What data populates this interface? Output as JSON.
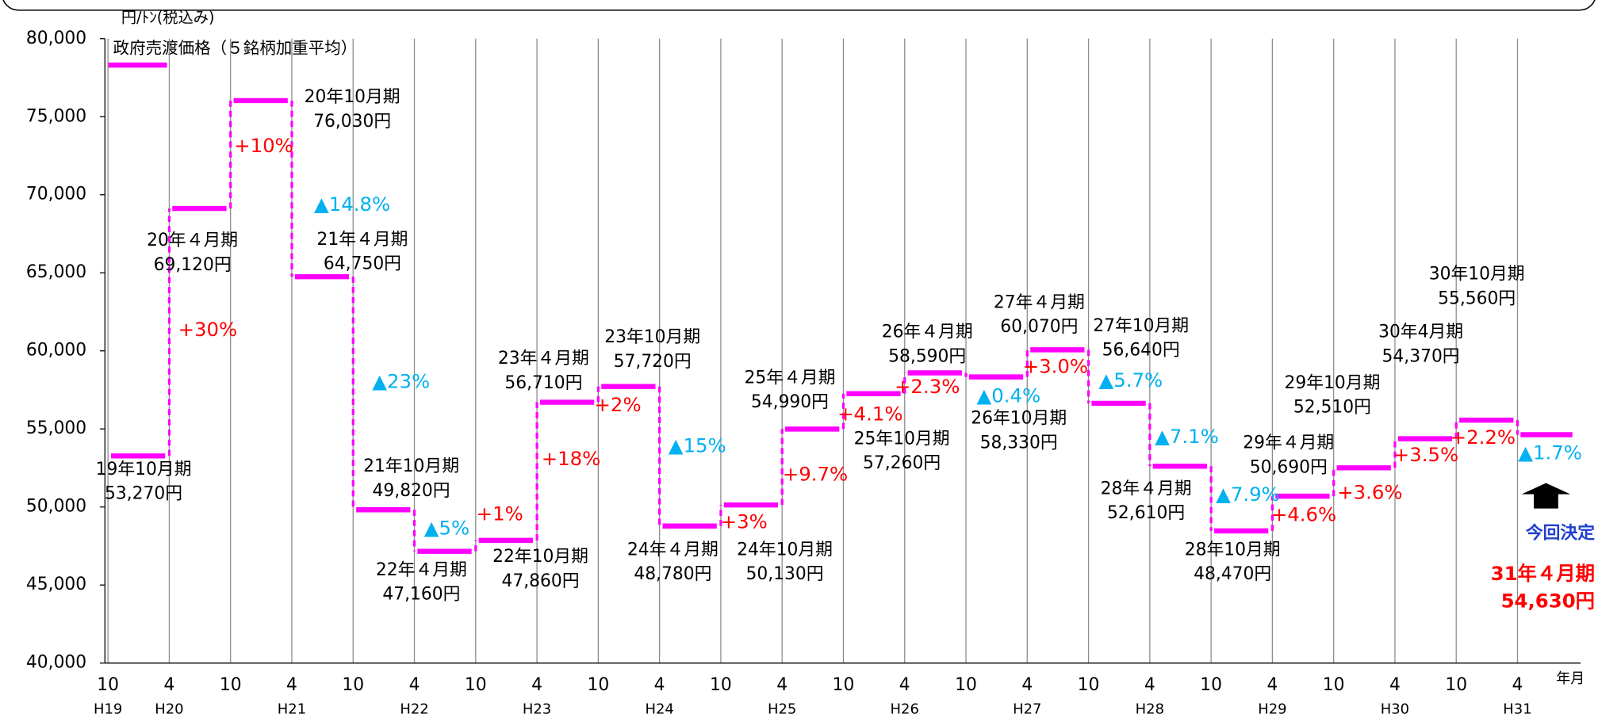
{
  "chart_data": {
    "type": "step",
    "unit_label": "円/ﾄﾝ(税込み)",
    "x_axis_label": "年月",
    "x_labels": [
      "10",
      "4",
      "10",
      "4",
      "10",
      "4",
      "10",
      "4",
      "10",
      "4",
      "10",
      "4",
      "10",
      "4",
      "10",
      "4",
      "10",
      "4",
      "10",
      "4",
      "10",
      "4",
      "10",
      "4"
    ],
    "era_labels": [
      "H19",
      "H20",
      null,
      "H21",
      null,
      "H22",
      null,
      "H23",
      null,
      "H24",
      null,
      "H25",
      null,
      "H26",
      null,
      "H27",
      null,
      "H28",
      null,
      "H29",
      null,
      "H30",
      null,
      "H31"
    ],
    "series": [
      {
        "name": "政府売渡価格（５銘柄加重平均）",
        "color": "#ff00ff",
        "categories": [
          "19年10月期",
          "20年４月期",
          "20年10月期",
          "21年４月期",
          "21年10月期",
          "22年４月期",
          "22年10月期",
          "23年４月期",
          "23年10月期",
          "24年４月期",
          "24年10月期",
          "25年４月期",
          "25年10月期",
          "26年４月期",
          "26年10月期",
          "27年４月期",
          "27年10月期",
          "28年４月期",
          "28年10月期",
          "29年４月期",
          "29年10月期",
          "30年4月期",
          "30年10月期",
          "31年４月期"
        ],
        "values": [
          53270,
          69120,
          76030,
          64750,
          49820,
          47160,
          47860,
          56710,
          57720,
          48780,
          50130,
          54990,
          57260,
          58590,
          58330,
          60070,
          56640,
          52610,
          48470,
          50690,
          52510,
          54370,
          55560,
          54630
        ],
        "value_labels": [
          "53,270円",
          "69,120円",
          "76,030円",
          "64,750円",
          "49,820円",
          "47,160円",
          "47,860円",
          "56,710円",
          "57,720円",
          "48,780円",
          "50,130円",
          "54,990円",
          "57,260円",
          "58,590円",
          "58,330円",
          "60,070円",
          "56,640円",
          "52,610円",
          "48,470円",
          "50,690円",
          "52,510円",
          "54,370円",
          "55,560円",
          "54,630円"
        ]
      }
    ],
    "changes": [
      {
        "label": "+30%",
        "color": "#ff0000"
      },
      {
        "label": "+10%",
        "color": "#ff0000"
      },
      {
        "label": "▲14.8%",
        "color": "#00b0f0"
      },
      {
        "label": "▲23%",
        "color": "#00b0f0"
      },
      {
        "label": "▲5%",
        "color": "#00b0f0"
      },
      {
        "label": "+1%",
        "color": "#ff0000"
      },
      {
        "label": "+18%",
        "color": "#ff0000"
      },
      {
        "label": "+2%",
        "color": "#ff0000"
      },
      {
        "label": "▲15%",
        "color": "#00b0f0"
      },
      {
        "label": "+3%",
        "color": "#ff0000"
      },
      {
        "label": "+9.7%",
        "color": "#ff0000"
      },
      {
        "label": "+4.1%",
        "color": "#ff0000"
      },
      {
        "label": "+2.3%",
        "color": "#ff0000"
      },
      {
        "label": "▲0.4%",
        "color": "#00b0f0"
      },
      {
        "label": "+3.0%",
        "color": "#ff0000"
      },
      {
        "label": "▲5.7%",
        "color": "#00b0f0"
      },
      {
        "label": "▲7.1%",
        "color": "#00b0f0"
      },
      {
        "label": "▲7.9%",
        "color": "#00b0f0"
      },
      {
        "label": "+4.6%",
        "color": "#ff0000"
      },
      {
        "label": "+3.6%",
        "color": "#ff0000"
      },
      {
        "label": "+3.5%",
        "color": "#ff0000"
      },
      {
        "label": "+2.2%",
        "color": "#ff0000"
      },
      {
        "label": "▲1.7%",
        "color": "#00b0f0"
      }
    ],
    "highlight_label": "今回決定",
    "highlight_color": "#1f3fd0",
    "highlight_value_color": "#ff0000",
    "ylim": [
      40000,
      80000
    ],
    "yticks": [
      {
        "value": 40000,
        "label": "40,000"
      },
      {
        "value": 45000,
        "label": "45,000"
      },
      {
        "value": 50000,
        "label": "50,000"
      },
      {
        "value": 55000,
        "label": "55,000"
      },
      {
        "value": 60000,
        "label": "60,000"
      },
      {
        "value": 65000,
        "label": "65,000"
      },
      {
        "value": 70000,
        "label": "70,000"
      },
      {
        "value": 75000,
        "label": "75,000"
      },
      {
        "value": 80000,
        "label": "80,000"
      }
    ]
  }
}
